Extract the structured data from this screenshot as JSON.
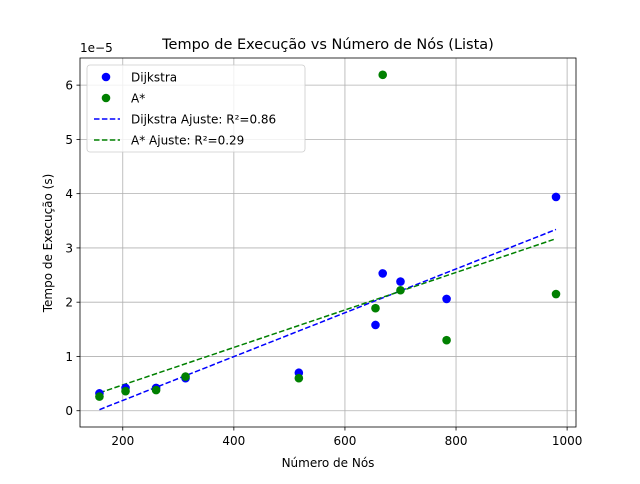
{
  "chart_data": {
    "type": "scatter",
    "title": "Tempo de Execução vs Número de Nós (Lista)",
    "xlabel": "Número de Nós",
    "ylabel": "Tempo de Execução (s)",
    "y_offset_label": "1e−5",
    "xlim": [
      123,
      1016
    ],
    "ylim": [
      -0.3,
      6.5
    ],
    "y_scale_factor": 1e-05,
    "xticks": [
      200,
      400,
      600,
      800,
      1000
    ],
    "yticks": [
      0,
      1,
      2,
      3,
      4,
      5,
      6
    ],
    "grid": true,
    "legend_position": "upper-left",
    "series": [
      {
        "name": "Dijkstra",
        "kind": "points",
        "color": "#0000ff",
        "x": [
          158,
          205,
          260,
          313,
          517,
          655,
          668,
          700,
          783,
          980
        ],
        "y": [
          0.32,
          0.42,
          0.42,
          0.6,
          0.7,
          1.58,
          2.53,
          2.38,
          2.06,
          3.94
        ]
      },
      {
        "name": "A*",
        "kind": "points",
        "color": "#008000",
        "x": [
          158,
          205,
          260,
          313,
          517,
          655,
          668,
          700,
          783,
          980
        ],
        "y": [
          0.26,
          0.36,
          0.38,
          0.63,
          0.6,
          1.89,
          6.19,
          2.22,
          1.3,
          2.15
        ]
      },
      {
        "name": "Dijkstra Ajuste: R²=0.86",
        "kind": "fit-line",
        "color": "#0000ff",
        "x": [
          158,
          980
        ],
        "y": [
          0.02,
          3.34
        ]
      },
      {
        "name": "A* Ajuste: R²=0.29",
        "kind": "fit-line",
        "color": "#008000",
        "x": [
          158,
          980
        ],
        "y": [
          0.33,
          3.17
        ]
      }
    ]
  }
}
